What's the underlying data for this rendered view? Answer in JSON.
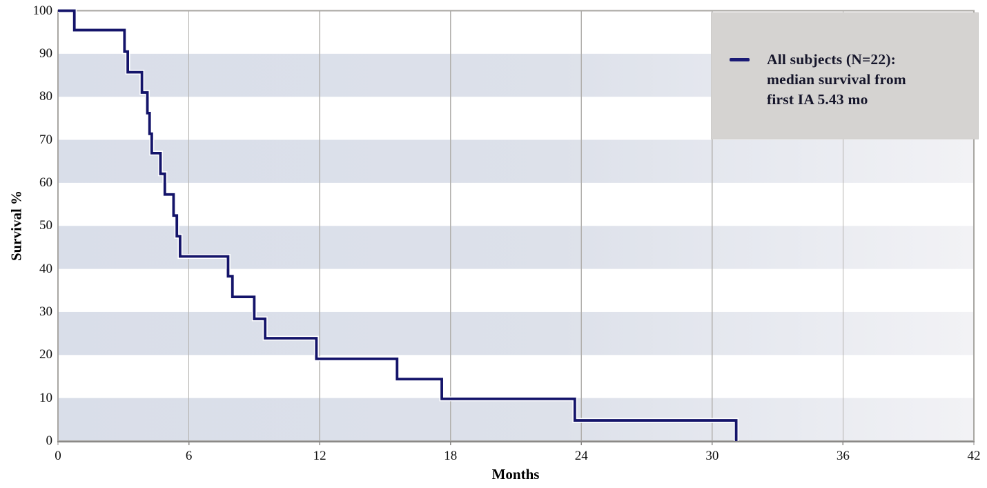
{
  "chart_data": {
    "type": "line",
    "subtype": "kaplan-meier-step-survival",
    "title": "",
    "xlabel": "Months",
    "ylabel": "Survival %",
    "xlim": [
      0,
      42
    ],
    "ylim": [
      0,
      100
    ],
    "xticks": [
      0,
      6,
      12,
      18,
      24,
      30,
      36,
      42
    ],
    "yticks": [
      0,
      10,
      20,
      30,
      40,
      50,
      60,
      70,
      80,
      90,
      100
    ],
    "grid": "vertical gridlines at each x tick; alternating horizontal shaded bands",
    "shaded_bands_percent": [
      [
        0,
        10
      ],
      [
        20,
        30
      ],
      [
        40,
        50
      ],
      [
        60,
        70
      ],
      [
        80,
        90
      ]
    ],
    "legend_position": "top-right",
    "series": [
      {
        "name": "All subjects (N=22): median survival from first IA 5.43 mo",
        "color": "#14146a",
        "steps_time_survival": [
          [
            0,
            100
          ],
          [
            0.75,
            95.5
          ],
          [
            3.05,
            90.5
          ],
          [
            3.2,
            85.7
          ],
          [
            3.85,
            81.0
          ],
          [
            4.1,
            76.2
          ],
          [
            4.2,
            71.4
          ],
          [
            4.3,
            66.9
          ],
          [
            4.7,
            62.1
          ],
          [
            4.9,
            57.3
          ],
          [
            5.3,
            52.4
          ],
          [
            5.45,
            47.6
          ],
          [
            5.6,
            42.9
          ],
          [
            7.8,
            38.3
          ],
          [
            8.0,
            33.5
          ],
          [
            9.0,
            28.4
          ],
          [
            9.5,
            23.9
          ],
          [
            11.85,
            19.1
          ],
          [
            15.55,
            14.4
          ],
          [
            17.6,
            9.8
          ],
          [
            23.7,
            4.8
          ],
          [
            31.1,
            0
          ]
        ]
      }
    ],
    "n_subjects": 22,
    "median_survival_months": 5.43
  },
  "axes": {
    "x_label": "Months",
    "y_label": "Survival %"
  },
  "legend": {
    "lines": [
      "All subjects (N=22):",
      "median survival from",
      "first IA 5.43 mo"
    ]
  },
  "colors": {
    "curve": "#14146a",
    "curve_halo": "#ffffff",
    "band_left": "#d9dee9",
    "band_mid": "#dde1ea",
    "band_right": "#f2f2f5",
    "legend_bg": "#d5d3d1",
    "legend_marker": "#1a1a75",
    "legend_text": "#15152a",
    "gridline": "#b2b0ad",
    "frame": "#a8a6a2",
    "axis_line": "#8b8987",
    "tick_text": "#111111"
  }
}
